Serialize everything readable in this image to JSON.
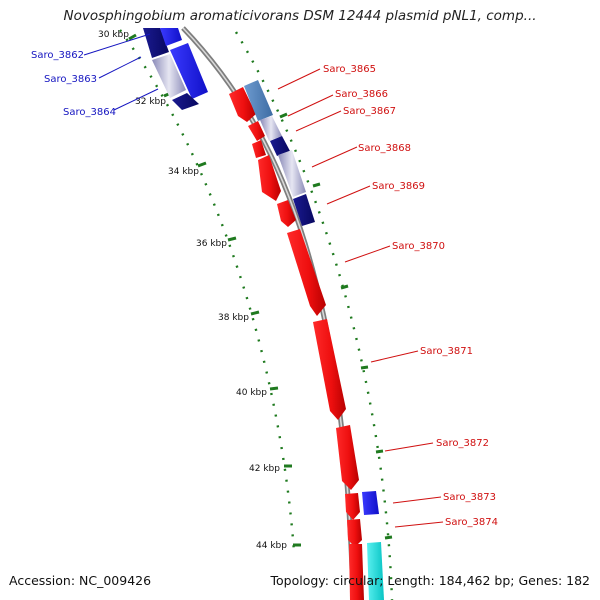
{
  "map": {
    "title": "Novosphingobium aromaticivorans DSM 12444 plasmid pNL1, comp...",
    "accession": "Accession: NC_009426",
    "summary": "Topology: circular; Length: 184,462 bp; Genes: 182"
  },
  "chart_data": {
    "type": "circular-genome-map-segment",
    "title": "Novosphingobium aromaticivorans DSM 12444 plasmid pNL1, comp...",
    "tick_labels": [
      "30 kbp",
      "32 kbp",
      "34 kbp",
      "36 kbp",
      "38 kbp",
      "40 kbp",
      "42 kbp",
      "44 kbp"
    ],
    "left_genes": [
      "Saro_3862",
      "Saro_3863",
      "Saro_3864"
    ],
    "right_genes": [
      "Saro_3865",
      "Saro_3866",
      "Saro_3867",
      "Saro_3868",
      "Saro_3869",
      "Saro_3870",
      "Saro_3871",
      "Saro_3872",
      "Saro_3873",
      "Saro_3874"
    ],
    "colors": {
      "backbone": "#8c8c8c",
      "tick": "#1f7a1f",
      "forward_gene": "#ee1111",
      "reverse_gene": "#1a1ae0",
      "dark_gene": "#10107a",
      "light_gene": "#b9b9d6",
      "steel_gene": "#4f7fb4",
      "cyan_gene": "#10dcdc",
      "left_label": "#1515c0",
      "right_label": "#d01010"
    }
  }
}
